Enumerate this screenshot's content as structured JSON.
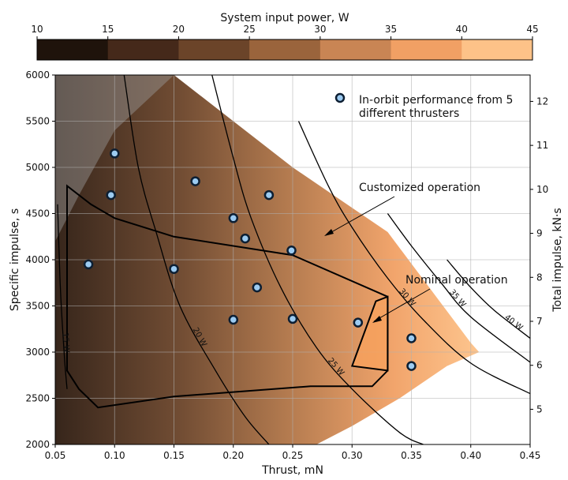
{
  "chart_data": {
    "type": "contour",
    "xlabel": "Thrust, mN",
    "ylabel": "Specific impulse, s",
    "y2label": "Total impulse, kN·s",
    "xlim": [
      0.05,
      0.45
    ],
    "ylim": [
      2000,
      6000
    ],
    "y2lim": [
      4.2,
      12.6
    ],
    "xticks": [
      "0.05",
      "0.10",
      "0.15",
      "0.20",
      "0.25",
      "0.30",
      "0.35",
      "0.40",
      "0.45"
    ],
    "yticks": [
      "2000",
      "2500",
      "3000",
      "3500",
      "4000",
      "4500",
      "5000",
      "5500",
      "6000"
    ],
    "y2ticks": [
      "5",
      "6",
      "7",
      "8",
      "9",
      "10",
      "11",
      "12"
    ],
    "grid": true,
    "colorbar": {
      "label": "System input power, W",
      "ticks": [
        "10",
        "15",
        "20",
        "25",
        "30",
        "35",
        "40",
        "45"
      ],
      "bins": [
        {
          "from": 10,
          "to": 15,
          "color": "#1f130b"
        },
        {
          "from": 15,
          "to": 20,
          "color": "#45291a"
        },
        {
          "from": 20,
          "to": 25,
          "color": "#6b4429"
        },
        {
          "from": 25,
          "to": 30,
          "color": "#9a643c"
        },
        {
          "from": 30,
          "to": 35,
          "color": "#c98554"
        },
        {
          "from": 35,
          "to": 40,
          "color": "#f1a064"
        },
        {
          "from": 40,
          "to": 45,
          "color": "#fdc288"
        }
      ]
    },
    "contours": [
      {
        "label": "15 W",
        "points": [
          [
            0.052,
            4600
          ],
          [
            0.054,
            3800
          ],
          [
            0.056,
            3300
          ],
          [
            0.058,
            2900
          ],
          [
            0.06,
            2600
          ]
        ]
      },
      {
        "label": "20 W",
        "points": [
          [
            0.108,
            6000
          ],
          [
            0.12,
            5000
          ],
          [
            0.135,
            4300
          ],
          [
            0.155,
            3500
          ],
          [
            0.185,
            2800
          ],
          [
            0.21,
            2300
          ],
          [
            0.23,
            2000
          ]
        ]
      },
      {
        "label": "25 W",
        "points": [
          [
            0.182,
            6000
          ],
          [
            0.2,
            5100
          ],
          [
            0.215,
            4450
          ],
          [
            0.24,
            3700
          ],
          [
            0.27,
            3050
          ],
          [
            0.3,
            2600
          ],
          [
            0.34,
            2130
          ],
          [
            0.36,
            2000
          ]
        ]
      },
      {
        "label": "30 W",
        "points": [
          [
            0.255,
            5500
          ],
          [
            0.28,
            4800
          ],
          [
            0.3,
            4350
          ],
          [
            0.33,
            3800
          ],
          [
            0.36,
            3350
          ],
          [
            0.4,
            2880
          ],
          [
            0.45,
            2550
          ]
        ]
      },
      {
        "label": "35 W",
        "points": [
          [
            0.33,
            4500
          ],
          [
            0.35,
            4150
          ],
          [
            0.375,
            3750
          ],
          [
            0.4,
            3380
          ],
          [
            0.45,
            2890
          ]
        ]
      },
      {
        "label": "40 W",
        "points": [
          [
            0.38,
            4000
          ],
          [
            0.4,
            3700
          ],
          [
            0.42,
            3450
          ],
          [
            0.45,
            3150
          ]
        ]
      }
    ],
    "operation_regions": [
      {
        "name": "Customized operation",
        "boundary": [
          [
            0.06,
            4800
          ],
          [
            0.08,
            4600
          ],
          [
            0.1,
            4450
          ],
          [
            0.15,
            4250
          ],
          [
            0.25,
            4050
          ],
          [
            0.33,
            3600
          ],
          [
            0.33,
            2800
          ],
          [
            0.317,
            2630
          ],
          [
            0.265,
            2630
          ],
          [
            0.15,
            2520
          ],
          [
            0.086,
            2400
          ],
          [
            0.07,
            2600
          ],
          [
            0.06,
            2800
          ]
        ]
      },
      {
        "name": "Nominal operation",
        "boundary": [
          [
            0.32,
            3550
          ],
          [
            0.33,
            3600
          ],
          [
            0.33,
            2800
          ],
          [
            0.3,
            2850
          ]
        ]
      }
    ],
    "regions": [
      {
        "name": "outer-envelope",
        "boundary": [
          [
            0.05,
            6000
          ],
          [
            0.15,
            6000
          ],
          [
            0.25,
            5000
          ],
          [
            0.33,
            4300
          ],
          [
            0.4,
            3100
          ],
          [
            0.407,
            3000
          ],
          [
            0.38,
            2850
          ],
          [
            0.34,
            2500
          ],
          [
            0.3,
            2200
          ],
          [
            0.27,
            2000
          ],
          [
            0.05,
            2000
          ]
        ]
      }
    ],
    "series": [
      {
        "name": "In-orbit performance from 5 different thrusters",
        "x": [
          0.078,
          0.097,
          0.1,
          0.15,
          0.168,
          0.2,
          0.2,
          0.21,
          0.22,
          0.23,
          0.249,
          0.25,
          0.305,
          0.35,
          0.35
        ],
        "y": [
          3950,
          4700,
          5150,
          3900,
          4850,
          4450,
          3350,
          4230,
          3700,
          4700,
          4100,
          3360,
          3320,
          3150,
          2850
        ]
      }
    ],
    "annotations": [
      "Customized operation",
      "Nominal operation"
    ]
  }
}
